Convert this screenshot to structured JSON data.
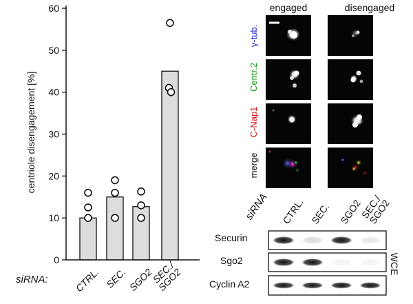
{
  "chart_data": {
    "type": "bar",
    "ylabel": "centriole disengagement [%]",
    "ylim": [
      0,
      60
    ],
    "yticks": [
      0,
      10,
      20,
      30,
      40,
      50,
      60
    ],
    "grid": false,
    "xlabel_prefix": "siRNA:",
    "categories": [
      "CTRL.",
      "SEC.",
      "SGO2",
      "SEC./ SGO2"
    ],
    "category_lines": [
      [
        "CTRL."
      ],
      [
        "SEC."
      ],
      [
        "SGO2"
      ],
      [
        "SEC./",
        "SGO2"
      ]
    ],
    "values": [
      10,
      15,
      12.7,
      45
    ],
    "replicates": [
      [
        16,
        12.5,
        10
      ],
      [
        19,
        16,
        10
      ],
      [
        16.3,
        13,
        10
      ],
      [
        56.5,
        41,
        40
      ]
    ],
    "bar_color": "#dddddd"
  },
  "micrographs": {
    "columns": [
      "engaged",
      "disengaged"
    ],
    "rows": [
      {
        "label": "γ-tub.",
        "color": "#2a2acc"
      },
      {
        "label": "Centr.2",
        "color": "#1a9a1a"
      },
      {
        "label": "C-Nap1",
        "color": "#d01818"
      },
      {
        "label": "merge",
        "color": "#111111"
      }
    ]
  },
  "western_blot": {
    "siRNA_label": "siRNA",
    "lanes": [
      "CTRL.",
      "SEC.",
      "SGO2",
      "SEC./ SGO2"
    ],
    "lane_lines": [
      [
        "CTRL."
      ],
      [
        "SEC."
      ],
      [
        "SGO2"
      ],
      [
        "SEC./",
        "SGO2"
      ]
    ],
    "rows": [
      "Securin",
      "Sgo2",
      "Cyclin A2"
    ],
    "side_label": "WCE",
    "band_intensity": [
      [
        1.0,
        0.15,
        1.0,
        0.1
      ],
      [
        1.0,
        1.0,
        0.05,
        0.05
      ],
      [
        1.0,
        1.0,
        1.0,
        1.0
      ]
    ]
  }
}
